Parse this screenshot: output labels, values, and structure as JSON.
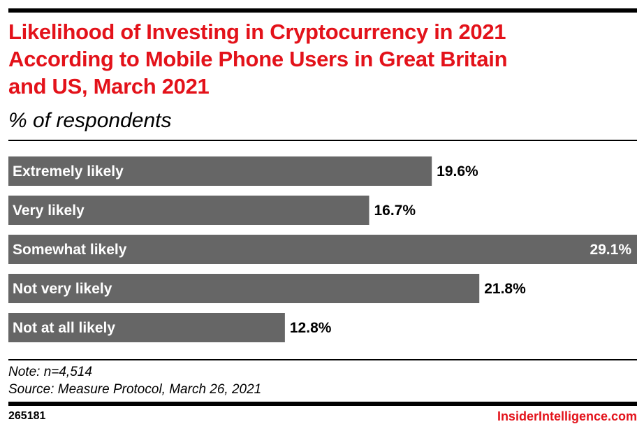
{
  "chart_data": {
    "type": "bar",
    "orientation": "horizontal",
    "title": "Likelihood of Investing in Cryptocurrency in 2021 According to Mobile Phone Users in Great Britain and US, March 2021",
    "subtitle": "% of respondents",
    "xlabel": "",
    "ylabel": "",
    "categories": [
      "Extremely likely",
      "Very likely",
      "Somewhat likely",
      "Not very likely",
      "Not at all likely"
    ],
    "values": [
      19.6,
      16.7,
      29.1,
      21.8,
      12.8
    ],
    "value_labels": [
      "19.6%",
      "16.7%",
      "29.1%",
      "21.8%",
      "12.8%"
    ],
    "xlim": [
      0,
      29.1
    ],
    "grid": false,
    "legend": "none",
    "bar_color": "#666666"
  },
  "header": {
    "title_lines": [
      "Likelihood of Investing in Cryptocurrency in 2021",
      "According to Mobile Phone Users in Great Britain",
      "and US, March 2021"
    ],
    "subtitle": "% of respondents",
    "title_color": "#e3121a"
  },
  "notes": {
    "note": "Note: n=4,514",
    "source": "Source: Measure Protocol, March 26, 2021"
  },
  "footer": {
    "chart_id": "265181",
    "brand": "InsiderIntelligence.com",
    "brand_color": "#e3121a"
  }
}
